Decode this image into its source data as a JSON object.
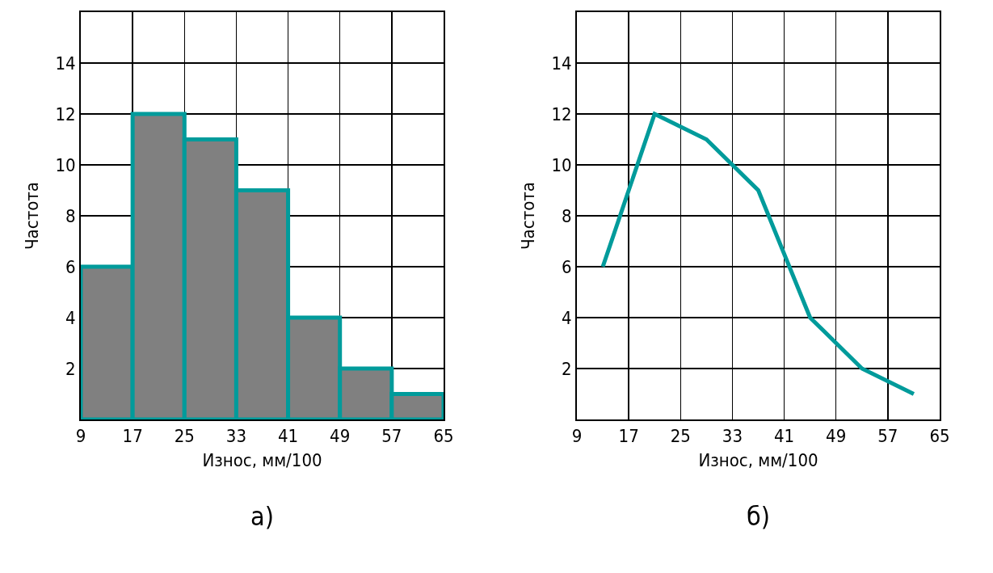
{
  "chart_data": [
    {
      "type": "histogram",
      "xlabel": "Износ, мм/100",
      "ylabel": "Частота",
      "annotations": [
        "а)"
      ],
      "bins": [
        9,
        17,
        25,
        33,
        41,
        49,
        57,
        65
      ],
      "values": [
        6,
        12,
        11,
        9,
        4,
        2,
        1
      ],
      "color": "#808080",
      "xlim": [
        9,
        65
      ],
      "xticks": [
        9,
        17,
        25,
        33,
        41,
        49,
        57,
        65
      ],
      "ylim": [
        0,
        16
      ],
      "yticks": [
        2,
        4,
        6,
        8,
        10,
        12,
        14
      ],
      "grid": true
    },
    {
      "type": "line",
      "xlabel": "Износ, мм/100",
      "ylabel": "Частота",
      "annotations": [
        "б)"
      ],
      "x": [
        13,
        21,
        29,
        37,
        45,
        53,
        61
      ],
      "values": [
        6,
        12,
        11,
        9,
        4,
        2,
        1
      ],
      "color": "#009b9b",
      "marker": "none",
      "line_style": "solid",
      "xlim": [
        9,
        65
      ],
      "xticks": [
        9,
        17,
        25,
        33,
        41,
        49,
        57,
        65
      ],
      "ylim": [
        0,
        16
      ],
      "yticks": [
        2,
        4,
        6,
        8,
        10,
        12,
        14
      ],
      "grid": true
    }
  ]
}
